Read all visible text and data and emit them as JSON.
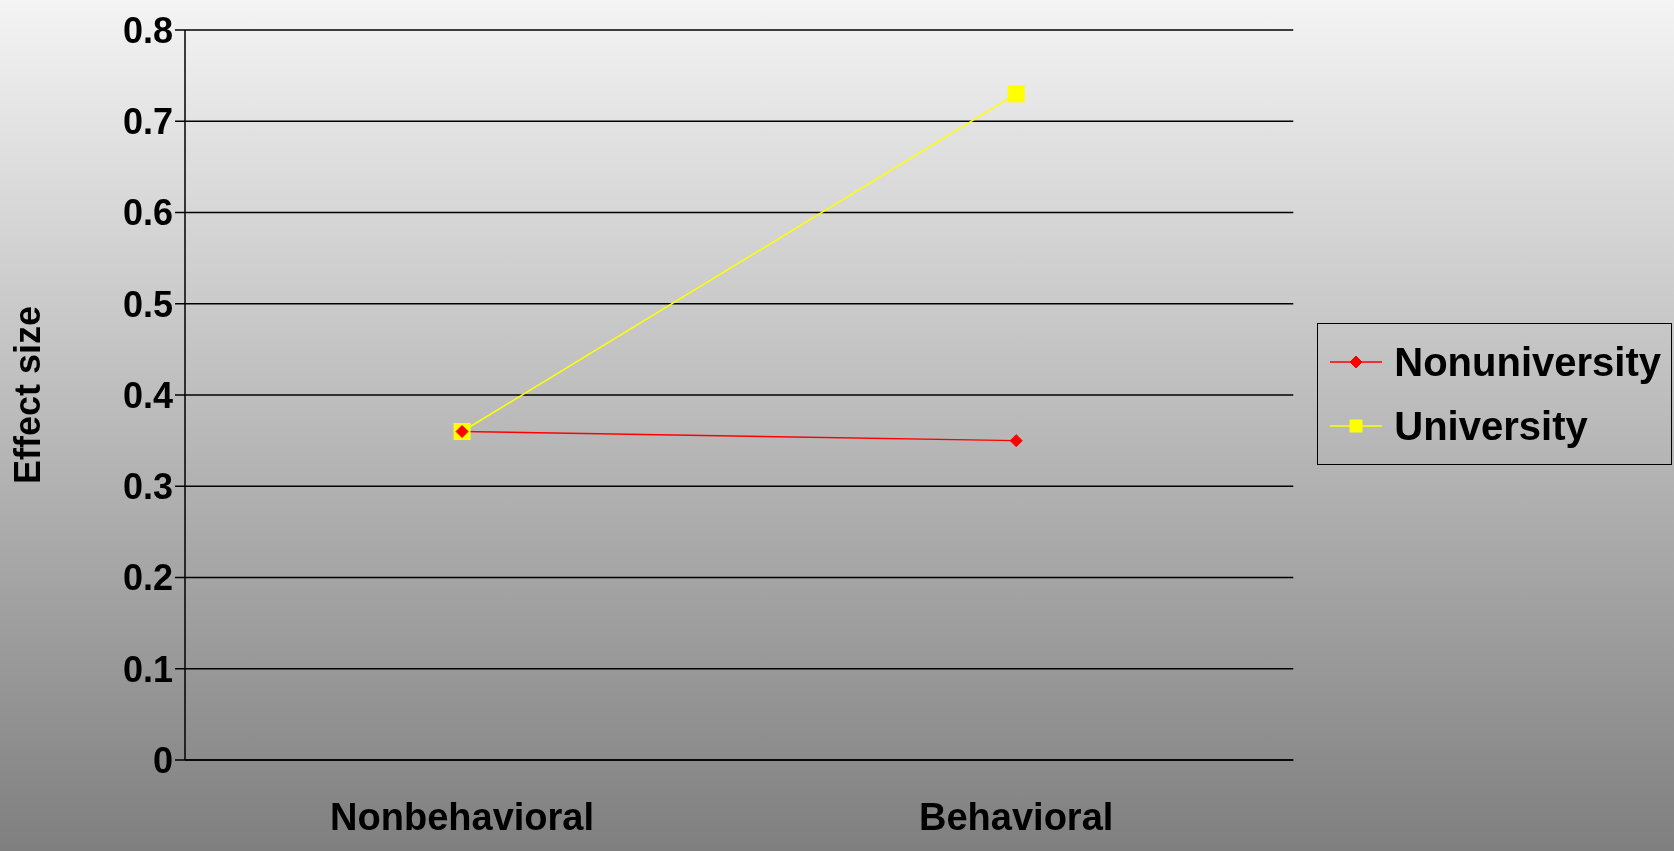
{
  "chart_data": {
    "type": "line",
    "ylabel": "Effect size",
    "categories": [
      "Nonbehavioral",
      "Behavioral"
    ],
    "series": [
      {
        "name": "Nonuniversity",
        "color": "#ff0000",
        "marker": "diamond",
        "values": [
          0.36,
          0.35
        ]
      },
      {
        "name": "University",
        "color": "#ffff00",
        "marker": "square",
        "values": [
          0.36,
          0.73
        ]
      }
    ],
    "ylim": [
      0,
      0.8
    ],
    "yticks": [
      0,
      0.1,
      0.2,
      0.3,
      0.4,
      0.5,
      0.6,
      0.7,
      0.8
    ],
    "grid": "y",
    "legend": "right",
    "line_style": "solid"
  }
}
